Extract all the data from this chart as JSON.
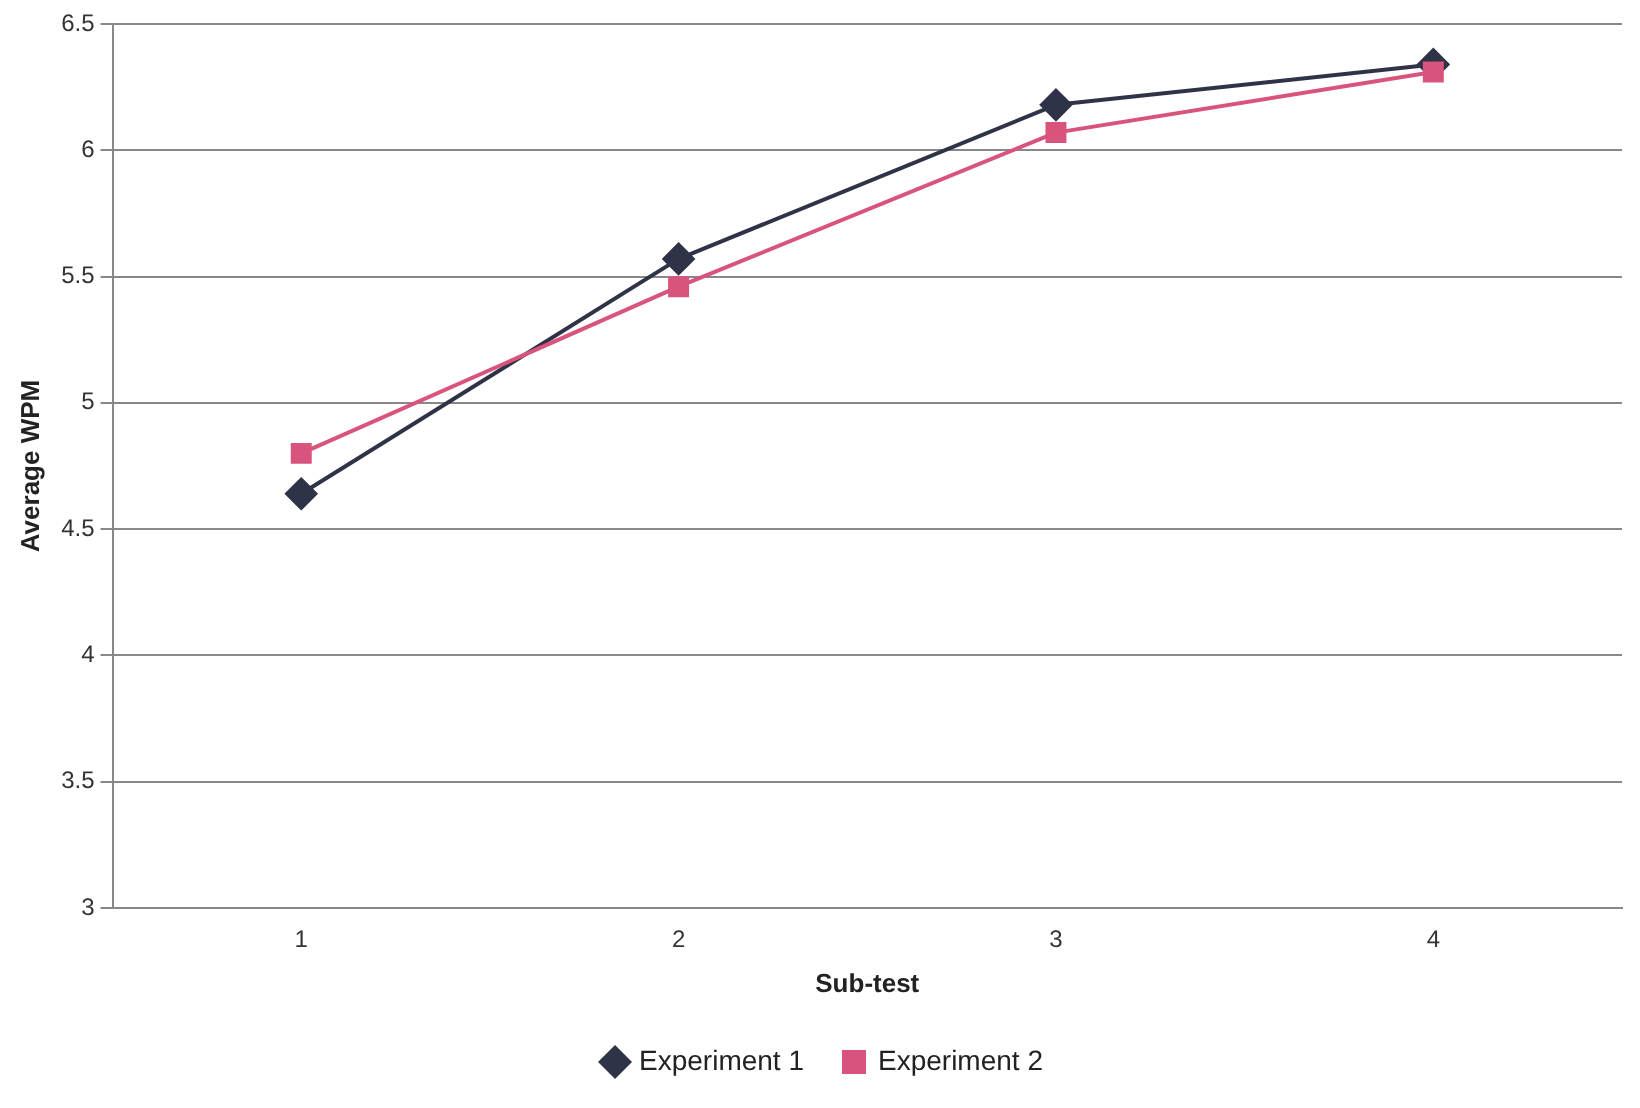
{
  "chart_data": {
    "type": "line",
    "xlabel": "Sub-test",
    "ylabel": "Average WPM",
    "categories": [
      "1",
      "2",
      "3",
      "4"
    ],
    "series": [
      {
        "name": "Experiment 1",
        "color": "#2f3347",
        "values": [
          4.64,
          5.57,
          6.18,
          6.34
        ],
        "marker": "diamond"
      },
      {
        "name": "Experiment 2",
        "color": "#d9547c",
        "values": [
          4.8,
          5.46,
          6.07,
          6.31
        ],
        "marker": "square"
      }
    ],
    "ylim": [
      3,
      6.5
    ],
    "yticks": [
      3,
      3.5,
      4,
      4.5,
      5,
      5.5,
      6,
      6.5
    ],
    "grid": "y",
    "legend": "bottom"
  }
}
